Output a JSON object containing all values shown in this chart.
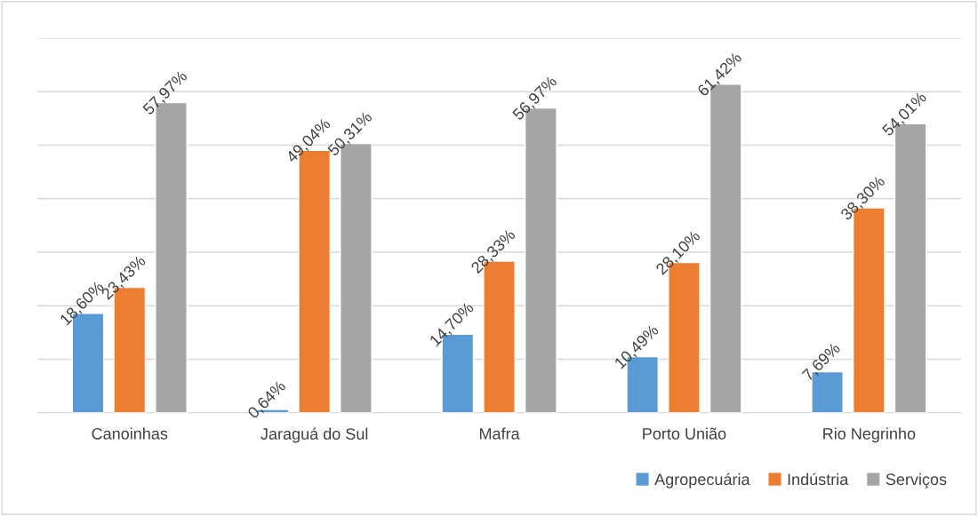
{
  "chart_data": {
    "type": "bar",
    "categories": [
      "Canoinhas",
      "Jaraguá do Sul",
      "Mafra",
      "Porto União",
      "Rio Negrinho"
    ],
    "series": [
      {
        "name": "Agropecuária",
        "color": "#5b9bd5",
        "values": [
          18.6,
          0.64,
          14.7,
          10.49,
          7.69
        ],
        "value_labels": [
          "18,60%",
          "0,64%",
          "14,70%",
          "10,49%",
          "7,69%"
        ]
      },
      {
        "name": "Indústria",
        "color": "#ed7d31",
        "values": [
          23.43,
          49.04,
          28.33,
          28.1,
          38.3
        ],
        "value_labels": [
          "23,43%",
          "49,04%",
          "28,33%",
          "28,10%",
          "38,30%"
        ]
      },
      {
        "name": "Serviços",
        "color": "#a5a5a5",
        "values": [
          57.97,
          50.31,
          56.97,
          61.42,
          54.01
        ],
        "value_labels": [
          "57,97%",
          "50,31%",
          "56,97%",
          "61,42%",
          "54,01%"
        ]
      }
    ],
    "ylim": [
      0,
      70
    ],
    "yticks": [
      {
        "value": 0,
        "label": null
      },
      {
        "value": 10,
        "label": null
      },
      {
        "value": 20,
        "label": null
      },
      {
        "value": 30,
        "label": null
      },
      {
        "value": 40,
        "label": null
      },
      {
        "value": 50,
        "label": null
      },
      {
        "value": 60,
        "label": null
      },
      {
        "value": 70,
        "label": null
      }
    ],
    "tick_labels": "x",
    "grid": "y",
    "legend": "bottom right"
  }
}
